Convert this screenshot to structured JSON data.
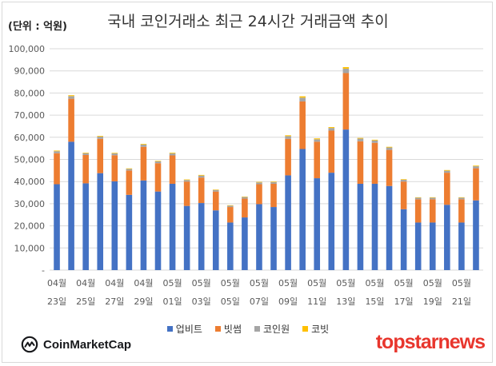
{
  "header": {
    "unit_label": "(단위 : 억원)",
    "title": "국내 코인거래소 최근 24시간 거래금액 추이"
  },
  "chart_data": {
    "type": "bar",
    "stacked": true,
    "title": "국내 코인거래소 최근 24시간 거래금액 추이",
    "ylabel": "(단위 : 억원)",
    "ylim": [
      0,
      100000
    ],
    "yticks": [
      "-",
      "10,000",
      "20,000",
      "30,000",
      "40,000",
      "50,000",
      "60,000",
      "70,000",
      "80,000",
      "90,000",
      "100,000"
    ],
    "grid": true,
    "legend_position": "bottom",
    "categories": [
      "04/23",
      "04/24",
      "04/25",
      "04/26",
      "04/27",
      "04/28",
      "04/29",
      "04/30",
      "05/01",
      "05/02",
      "05/03",
      "05/04",
      "05/05",
      "05/06",
      "05/07",
      "05/08",
      "05/09",
      "05/10",
      "05/11",
      "05/12",
      "05/13",
      "05/14",
      "05/15",
      "05/16",
      "05/17",
      "05/18",
      "05/19",
      "05/20",
      "05/21",
      "05/22"
    ],
    "x_tick_labels": [
      {
        "index": 0,
        "month": "04월",
        "day": "23일"
      },
      {
        "index": 2,
        "month": "04월",
        "day": "25일"
      },
      {
        "index": 4,
        "month": "04월",
        "day": "27일"
      },
      {
        "index": 6,
        "month": "04월",
        "day": "29일"
      },
      {
        "index": 8,
        "month": "05월",
        "day": "01일"
      },
      {
        "index": 10,
        "month": "05월",
        "day": "03일"
      },
      {
        "index": 12,
        "month": "05월",
        "day": "05일"
      },
      {
        "index": 14,
        "month": "05월",
        "day": "07일"
      },
      {
        "index": 16,
        "month": "05월",
        "day": "09일"
      },
      {
        "index": 18,
        "month": "05월",
        "day": "11일"
      },
      {
        "index": 20,
        "month": "05월",
        "day": "13일"
      },
      {
        "index": 22,
        "month": "05월",
        "day": "15일"
      },
      {
        "index": 24,
        "month": "05월",
        "day": "17일"
      },
      {
        "index": 26,
        "month": "05월",
        "day": "19일"
      },
      {
        "index": 28,
        "month": "05월",
        "day": "21일"
      }
    ],
    "series": [
      {
        "name": "업비트",
        "color": "#4472c4",
        "values": [
          38800,
          58000,
          39200,
          43800,
          40100,
          34000,
          40500,
          35500,
          39000,
          29000,
          30300,
          27000,
          21500,
          23800,
          29800,
          28500,
          42800,
          54700,
          41500,
          44000,
          63500,
          39000,
          39000,
          38000,
          27500,
          21500,
          21500,
          29500,
          21500,
          31500
        ]
      },
      {
        "name": "빗썸",
        "color": "#ed7d31",
        "values": [
          14000,
          19400,
          12800,
          15500,
          11800,
          11000,
          15200,
          12800,
          12800,
          11000,
          11500,
          8500,
          7000,
          8500,
          9000,
          10500,
          16500,
          21500,
          16500,
          19000,
          25500,
          19200,
          18500,
          16300,
          12500,
          10500,
          10500,
          14500,
          10500,
          14500
        ]
      },
      {
        "name": "코인원",
        "color": "#a5a5a5",
        "values": [
          900,
          1200,
          800,
          1000,
          800,
          700,
          1000,
          800,
          900,
          700,
          900,
          700,
          600,
          700,
          800,
          700,
          1200,
          1700,
          1100,
          1200,
          2000,
          1200,
          1100,
          1100,
          800,
          700,
          700,
          900,
          700,
          900
        ]
      },
      {
        "name": "코빗",
        "color": "#ffc000",
        "values": [
          300,
          400,
          250,
          300,
          250,
          250,
          300,
          250,
          300,
          250,
          300,
          200,
          200,
          200,
          250,
          250,
          400,
          600,
          400,
          400,
          700,
          300,
          300,
          300,
          250,
          200,
          200,
          300,
          200,
          300
        ]
      }
    ]
  },
  "footer": {
    "cmc_logo_text": "CoinMarketCap",
    "tsn_logo_text": "topstarnews"
  },
  "colors": {
    "grid": "#d9d9d9",
    "axis_text": "#595959",
    "brand_red": "#e8362d"
  }
}
